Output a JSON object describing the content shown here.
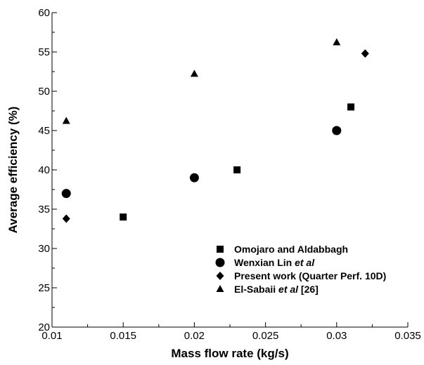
{
  "chart_data": {
    "type": "scatter",
    "xlabel": "Mass flow rate (kg/s)",
    "ylabel": "Average efficiency (%)",
    "xlim": [
      0.01,
      0.035
    ],
    "ylim": [
      20,
      60
    ],
    "x_ticks": [
      "0.01",
      "0.015",
      "0.02",
      "0.025",
      "0.03",
      "0.035"
    ],
    "y_ticks": [
      "20",
      "25",
      "30",
      "35",
      "40",
      "45",
      "50",
      "55",
      "60"
    ],
    "legend_position": "bottom-right",
    "grid": false,
    "series": [
      {
        "name_parts": [
          {
            "text": "Omojaro and Aldabbagh",
            "italic": false
          }
        ],
        "marker": "square",
        "points": [
          [
            0.015,
            34
          ],
          [
            0.023,
            40
          ],
          [
            0.031,
            48
          ]
        ]
      },
      {
        "name_parts": [
          {
            "text": "Wenxian Lin ",
            "italic": false
          },
          {
            "text": "et al",
            "italic": true
          }
        ],
        "marker": "circle",
        "points": [
          [
            0.011,
            37
          ],
          [
            0.02,
            39
          ],
          [
            0.03,
            45
          ]
        ]
      },
      {
        "name_parts": [
          {
            "text": "Present work (Quarter Perf. 10D)",
            "italic": false
          }
        ],
        "marker": "diamond",
        "points": [
          [
            0.011,
            33.8
          ],
          [
            0.032,
            54.8
          ]
        ]
      },
      {
        "name_parts": [
          {
            "text": "El-Sabaii ",
            "italic": false
          },
          {
            "text": "et al",
            "italic": true
          },
          {
            "text": " [26]",
            "italic": false
          }
        ],
        "marker": "triangle",
        "points": [
          [
            0.011,
            46.2
          ],
          [
            0.02,
            52.2
          ],
          [
            0.03,
            56.2
          ]
        ]
      }
    ]
  }
}
